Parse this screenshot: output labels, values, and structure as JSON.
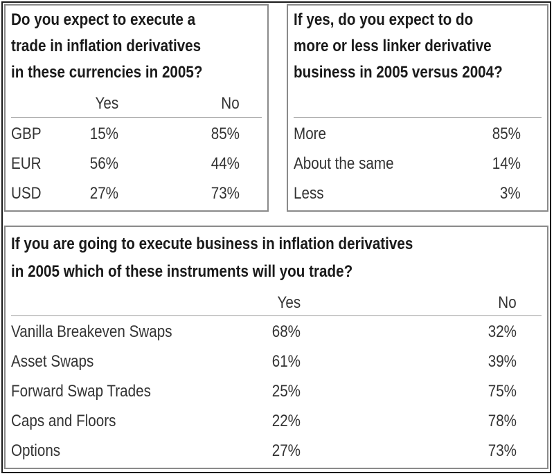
{
  "panel1": {
    "title_lines": [
      "Do you expect to execute a",
      "trade in inflation derivatives",
      "in these currencies in 2005?"
    ],
    "headers": {
      "yes": "Yes",
      "no": "No"
    },
    "rows": [
      {
        "label": "GBP",
        "yes": "15%",
        "no": "85%"
      },
      {
        "label": "EUR",
        "yes": "56%",
        "no": "44%"
      },
      {
        "label": "USD",
        "yes": "27%",
        "no": "73%"
      }
    ]
  },
  "panel2": {
    "title_lines": [
      "If yes, do you expect to do",
      "more or less linker derivative",
      "business in 2005 versus 2004?"
    ],
    "rows": [
      {
        "label": "More",
        "value": "85%"
      },
      {
        "label": "About the same",
        "value": "14%"
      },
      {
        "label": "Less",
        "value": "3%"
      }
    ]
  },
  "panel3": {
    "title_lines": [
      "If you are going to execute business in inflation derivatives",
      "in 2005 which of these instruments will you trade?"
    ],
    "headers": {
      "yes": "Yes",
      "no": "No"
    },
    "rows": [
      {
        "label": "Vanilla Breakeven Swaps",
        "yes": "68%",
        "no": "32%"
      },
      {
        "label": "Asset Swaps",
        "yes": "61%",
        "no": "39%"
      },
      {
        "label": "Forward Swap Trades",
        "yes": "25%",
        "no": "75%"
      },
      {
        "label": "Caps and Floors",
        "yes": "22%",
        "no": "78%"
      },
      {
        "label": "Options",
        "yes": "27%",
        "no": "73%"
      }
    ]
  }
}
